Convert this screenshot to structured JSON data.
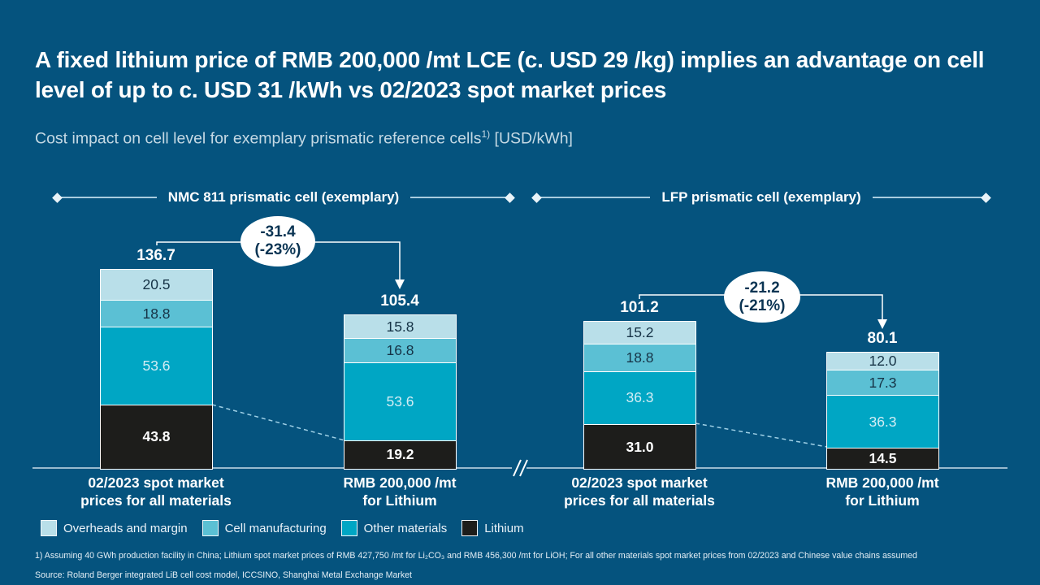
{
  "slide": {
    "title": "A fixed lithium price of RMB 200,000 /mt LCE (c. USD 29 /kg) implies an advantage on cell level of up to c. USD 31 /kWh vs 02/2023 spot market prices",
    "subtitle": {
      "text": "Cost impact on cell level for exemplary prismatic reference cells",
      "footnote_ref": "1)",
      "unit": " [USD/kWh]"
    },
    "footnote": "1) Assuming 40 GWh production facility in China; Lithium spot market prices of RMB 427,750 /mt for Li₂CO₃ and RMB 456,300 /mt for LiOH; For all other materials spot market prices from 02/2023 and Chinese value chains assumed",
    "source": "Source: Roland Berger integrated LiB cell cost model, ICCSINO, Shanghai Metal Exchange Market",
    "colors": {
      "background": "#05537E",
      "title_text": "#FFFFFF",
      "subtitle_text": "#C5D9E4",
      "connector_lines": "#FFFFFF",
      "dashed_lines": "#9FD0E6",
      "baseline": "#C9DDE9"
    }
  },
  "chart_data": {
    "type": "bar",
    "stacked": true,
    "unit": "USD/kWh",
    "axis_break_between_groups": true,
    "series_order": [
      "Overheads and margin",
      "Cell manufacturing",
      "Other materials",
      "Lithium"
    ],
    "legend": [
      {
        "label": "Overheads and margin",
        "color": "#B9DFE9",
        "value_color": "#163346"
      },
      {
        "label": "Cell manufacturing",
        "color": "#5BC0D4",
        "value_color": "#163346"
      },
      {
        "label": "Other materials",
        "color": "#00A6C4",
        "value_color": "#D3EDF4"
      },
      {
        "label": "Lithium",
        "color": "#1D1D1B",
        "value_color": "#FFFFFF"
      }
    ],
    "groups": [
      {
        "label": "NMC 811 prismatic cell (exemplary)",
        "delta": {
          "value": "-31.4",
          "percent": "(-23%)"
        }
      },
      {
        "label": "LFP prismatic cell (exemplary)",
        "delta": {
          "value": "-21.2",
          "percent": "(-21%)"
        }
      }
    ],
    "bars": [
      {
        "group": 0,
        "category": [
          "02/2023 spot market",
          "prices for all materials"
        ],
        "total": 136.7,
        "segments": {
          "Overheads and margin": 20.5,
          "Cell manufacturing": 18.8,
          "Other materials": 53.6,
          "Lithium": 43.8
        }
      },
      {
        "group": 0,
        "category": [
          "RMB 200,000 /mt",
          "for Lithium"
        ],
        "total": 105.4,
        "segments": {
          "Overheads and margin": 15.8,
          "Cell manufacturing": 16.8,
          "Other materials": 53.6,
          "Lithium": 19.2
        }
      },
      {
        "group": 1,
        "category": [
          "02/2023 spot market",
          "prices for all materials"
        ],
        "total": 101.2,
        "segments": {
          "Overheads and margin": 15.2,
          "Cell manufacturing": 18.8,
          "Other materials": 36.3,
          "Lithium": 31.0
        }
      },
      {
        "group": 1,
        "category": [
          "RMB 200,000 /mt",
          "for Lithium"
        ],
        "total": 80.1,
        "segments": {
          "Overheads and margin": 12.0,
          "Cell manufacturing": 17.3,
          "Other materials": 36.3,
          "Lithium": 14.5
        }
      }
    ]
  }
}
